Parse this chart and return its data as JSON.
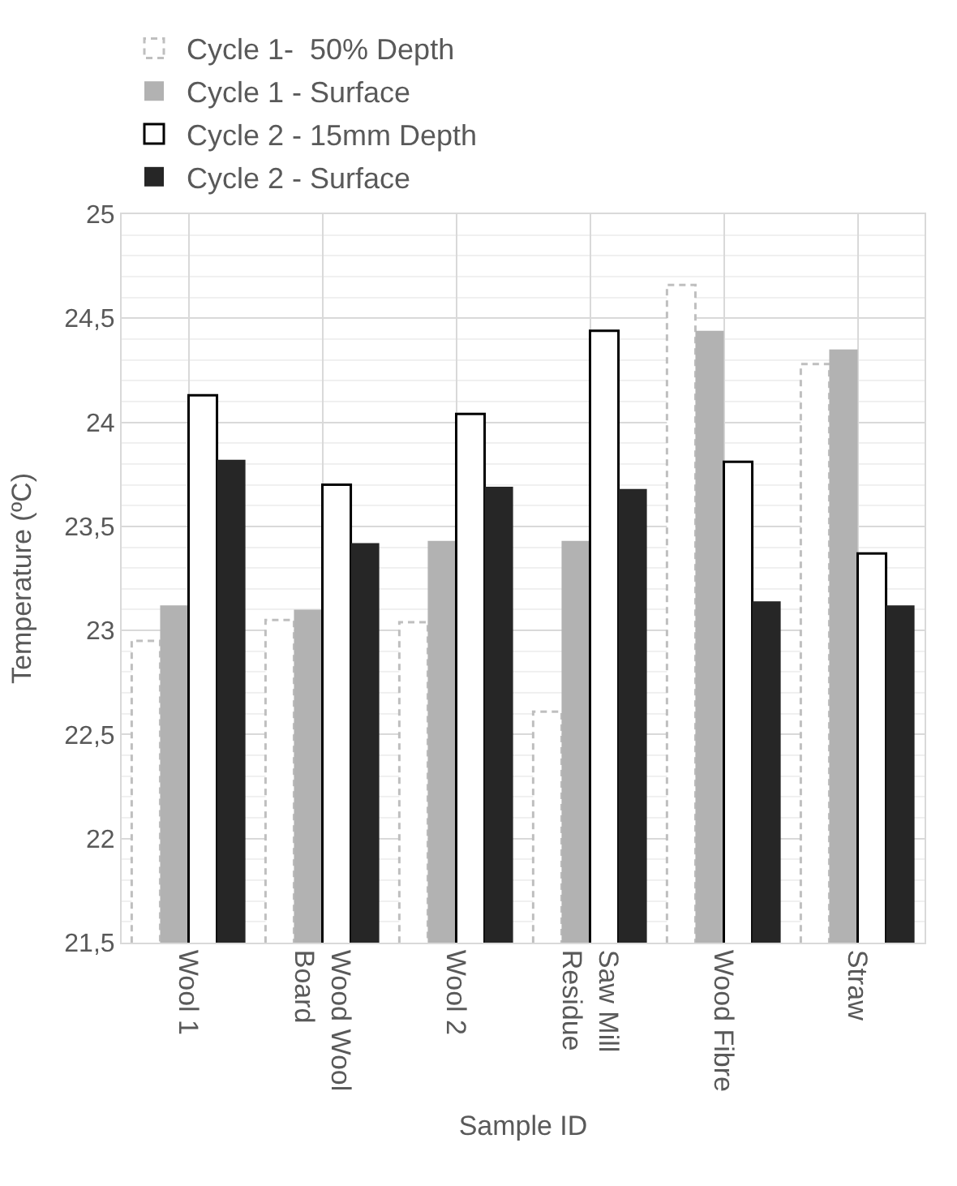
{
  "chart_data": {
    "type": "bar",
    "xlabel": "Sample ID",
    "ylabel": "Temperature (ºC)",
    "categories": [
      "Wool 1",
      "Wood Wool Board",
      "Wool 2",
      "Saw Mill Residue",
      "Wood Fibre",
      "Straw"
    ],
    "series": [
      {
        "name": "Cycle 1-  50% Depth",
        "color": "#bfbfbf",
        "line_style": "dashed",
        "values": [
          22.95,
          23.05,
          23.04,
          22.61,
          24.66,
          24.28
        ]
      },
      {
        "name": "Cycle 1 - Surface",
        "color": "#b2b2b2",
        "values": [
          23.12,
          23.1,
          23.43,
          23.43,
          24.44,
          24.35
        ]
      },
      {
        "name": "Cycle 2 - 15mm Depth",
        "color": "#000000",
        "line_style": "solid",
        "values": [
          24.13,
          23.7,
          24.04,
          24.44,
          23.81,
          23.37
        ]
      },
      {
        "name": "Cycle 2 - Surface",
        "color": "#262626",
        "values": [
          23.82,
          23.42,
          23.69,
          23.68,
          23.14,
          23.12
        ]
      }
    ],
    "ylim": [
      21.5,
      25
    ],
    "yticks": [
      {
        "value": 21.5,
        "label": "21,5"
      },
      22,
      {
        "value": 22.5,
        "label": "22,5"
      },
      23,
      {
        "value": 23.5,
        "label": "23,5"
      },
      24,
      {
        "value": 24.5,
        "label": "24,5"
      },
      25
    ],
    "grid": true,
    "legend": "top left"
  }
}
